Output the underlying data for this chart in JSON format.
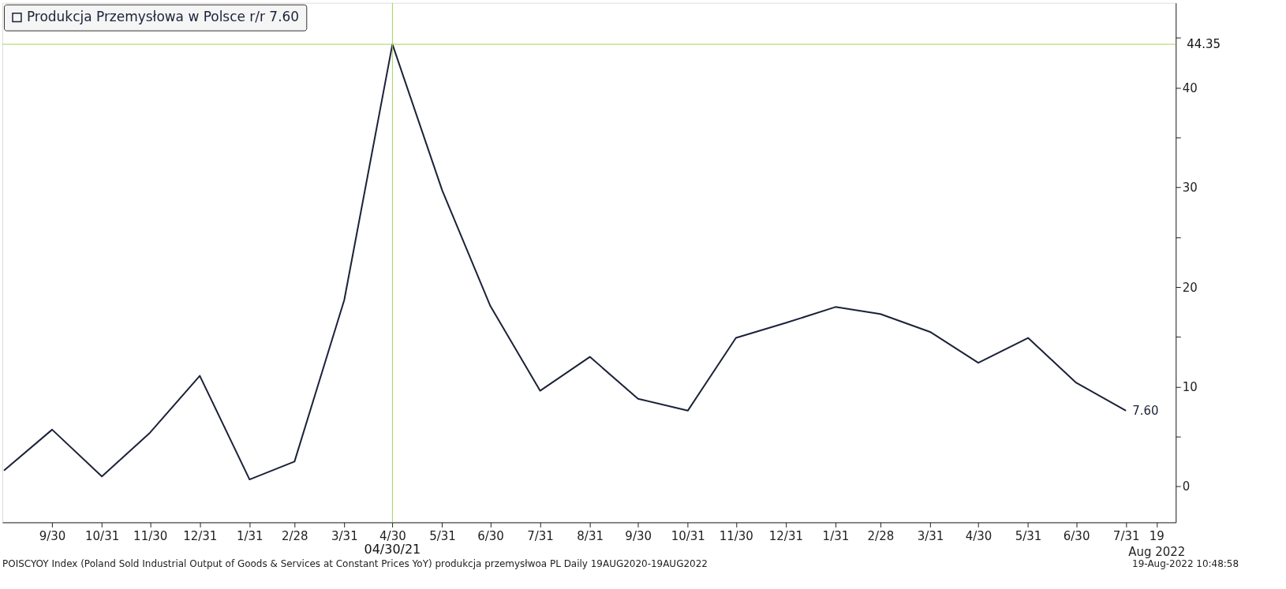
{
  "chart_data": {
    "type": "line",
    "x": [
      "2020-08-31",
      "2020-09-30",
      "2020-10-31",
      "2020-11-30",
      "2020-12-31",
      "2021-01-31",
      "2021-02-28",
      "2021-03-31",
      "2021-04-30",
      "2021-05-31",
      "2021-06-30",
      "2021-07-31",
      "2021-08-31",
      "2021-09-30",
      "2021-10-31",
      "2021-11-30",
      "2021-12-31",
      "2022-01-31",
      "2022-02-28",
      "2022-03-31",
      "2022-04-30",
      "2022-05-31",
      "2022-06-30",
      "2022-07-31"
    ],
    "series": [
      {
        "name": "Produkcja Przemysłowa w Polsce r/r 7.60",
        "color": "#1b2238",
        "values": [
          1.6,
          5.7,
          1.0,
          5.4,
          11.1,
          0.7,
          2.5,
          18.7,
          44.35,
          29.7,
          18.1,
          9.6,
          13.0,
          8.8,
          7.6,
          14.9,
          16.4,
          18.0,
          17.3,
          15.5,
          12.4,
          14.9,
          10.4,
          7.6
        ],
        "value_labels": [
          null,
          null,
          null,
          null,
          null,
          null,
          null,
          null,
          null,
          null,
          null,
          null,
          null,
          null,
          null,
          null,
          null,
          null,
          null,
          null,
          null,
          null,
          null,
          "7.60"
        ]
      }
    ],
    "xlim": [
      "2020-08-30",
      "2022-08-31"
    ],
    "xticks": [
      {
        "value": "2020-09-30",
        "label": "9/30"
      },
      {
        "value": "2020-10-31",
        "label": "10/31"
      },
      {
        "value": "2020-11-30",
        "label": "11/30"
      },
      {
        "value": "2020-12-31",
        "label": "12/31"
      },
      {
        "value": "2021-01-31",
        "label": "1/31"
      },
      {
        "value": "2021-02-28",
        "label": "2/28"
      },
      {
        "value": "2021-03-31",
        "label": "3/31"
      },
      {
        "value": "2021-04-30",
        "label": "4/30"
      },
      {
        "value": "2021-05-31",
        "label": "5/31"
      },
      {
        "value": "2021-06-30",
        "label": "6/30"
      },
      {
        "value": "2021-07-31",
        "label": "7/31"
      },
      {
        "value": "2021-08-31",
        "label": "8/31"
      },
      {
        "value": "2021-09-30",
        "label": "9/30"
      },
      {
        "value": "2021-10-31",
        "label": "10/31"
      },
      {
        "value": "2021-11-30",
        "label": "11/30"
      },
      {
        "value": "2021-12-31",
        "label": "12/31"
      },
      {
        "value": "2022-01-31",
        "label": "1/31"
      },
      {
        "value": "2022-02-28",
        "label": "2/28"
      },
      {
        "value": "2022-03-31",
        "label": "3/31"
      },
      {
        "value": "2022-04-30",
        "label": "4/30"
      },
      {
        "value": "2022-05-31",
        "label": "5/31"
      },
      {
        "value": "2022-06-30",
        "label": "6/30"
      },
      {
        "value": "2022-07-31",
        "label": "7/31"
      },
      {
        "value": "2022-08-19",
        "label": "19\nAug 2022"
      }
    ],
    "ylim": [
      -3.6,
      48.5
    ],
    "yticks": [
      0,
      {
        "value": 5,
        "label": null
      },
      10,
      {
        "value": 15,
        "label": null
      },
      20,
      {
        "value": 25,
        "label": null
      },
      30,
      {
        "value": 35,
        "label": null
      },
      40,
      {
        "value": 45,
        "label": null
      }
    ],
    "ref_lines": [
      {
        "axis": "x",
        "value": "2021-04-30",
        "label": "04/30/21",
        "color": "#a6d35a"
      },
      {
        "axis": "y",
        "value": 44.35,
        "label": "44.35",
        "color": "#a6d35a"
      }
    ],
    "annotations": [
      "POISCYOY Index (Poland Sold Industrial Output of Goods & Services at Constant Prices YoY) produkcja przemysłwoa PL  Daily 19AUG2020-19AUG2022",
      "19-Aug-2022 10:48:58"
    ],
    "legend": "top left",
    "grid": false,
    "marker": "none",
    "line_style": "solid"
  }
}
